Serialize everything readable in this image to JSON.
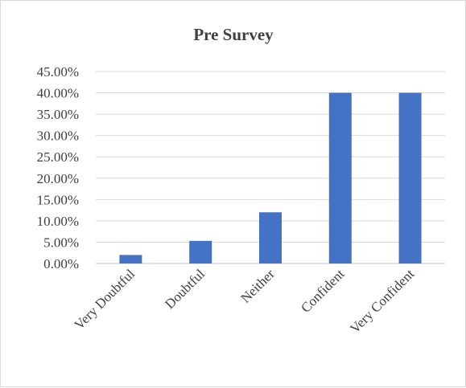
{
  "chart_data": {
    "type": "bar",
    "title": "Pre Survey",
    "xlabel": "",
    "ylabel": "",
    "categories": [
      "Very Doubtful",
      "Doubtful",
      "Neither",
      "Confident",
      "Very Confident"
    ],
    "values": [
      2.0,
      5.3,
      12.0,
      40.0,
      40.0
    ],
    "ylim": [
      0,
      45
    ],
    "yticks": [
      "0.00%",
      "5.00%",
      "10.00%",
      "15.00%",
      "20.00%",
      "25.00%",
      "30.00%",
      "35.00%",
      "40.00%",
      "45.00%"
    ],
    "grid": true,
    "legend": "none",
    "bar_color": "#4472c4"
  }
}
